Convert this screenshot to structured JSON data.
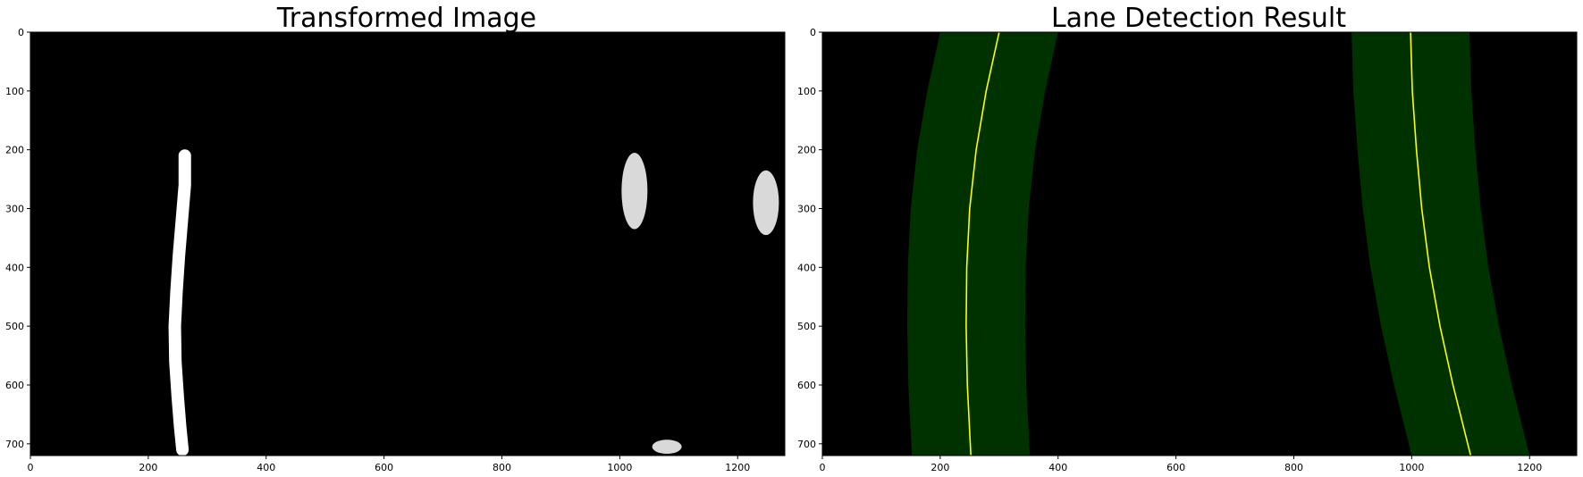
{
  "chart_data": [
    {
      "type": "image",
      "title": "Transformed Image",
      "xlim": [
        0,
        1280
      ],
      "ylim": [
        720,
        0
      ],
      "xticks": [
        0,
        200,
        400,
        600,
        800,
        1000,
        1200
      ],
      "yticks": [
        0,
        100,
        200,
        300,
        400,
        500,
        600,
        700
      ],
      "xtick_labels": [
        "0",
        "200",
        "400",
        "600",
        "800",
        "1000",
        "1200"
      ],
      "ytick_labels": [
        "0",
        "100",
        "200",
        "300",
        "400",
        "500",
        "600",
        "700"
      ],
      "background_color": "#000000",
      "pixel_color": "#ffffff",
      "content": "binary warped lane-pixel mask",
      "left_lane_points": [
        {
          "x": 262,
          "y": 210
        },
        {
          "x": 262,
          "y": 260
        },
        {
          "x": 257,
          "y": 320
        },
        {
          "x": 252,
          "y": 380
        },
        {
          "x": 248,
          "y": 440
        },
        {
          "x": 245,
          "y": 500
        },
        {
          "x": 246,
          "y": 560
        },
        {
          "x": 250,
          "y": 620
        },
        {
          "x": 254,
          "y": 670
        },
        {
          "x": 258,
          "y": 710
        }
      ],
      "right_blobs": [
        {
          "x": 1025,
          "y": 270,
          "rx": 22,
          "ry": 65
        },
        {
          "x": 1248,
          "y": 290,
          "rx": 22,
          "ry": 55
        },
        {
          "x": 1080,
          "y": 705,
          "rx": 25,
          "ry": 12
        }
      ],
      "grid": false
    },
    {
      "type": "image",
      "title": "Lane Detection Result",
      "xlim": [
        0,
        1280
      ],
      "ylim": [
        720,
        0
      ],
      "xticks": [
        0,
        200,
        400,
        600,
        800,
        1000,
        1200
      ],
      "yticks": [
        0,
        100,
        200,
        300,
        400,
        500,
        600,
        700
      ],
      "xtick_labels": [
        "0",
        "200",
        "400",
        "600",
        "800",
        "1000",
        "1200"
      ],
      "ytick_labels": [
        "0",
        "100",
        "200",
        "300",
        "400",
        "500",
        "600",
        "700"
      ],
      "background_color": "#000000",
      "band_color": "#003200",
      "fit_line_color": "#ffff00",
      "band_half_width": 100,
      "left_fit_line": [
        {
          "x": 300,
          "y": 0
        },
        {
          "x": 278,
          "y": 100
        },
        {
          "x": 261,
          "y": 200
        },
        {
          "x": 250,
          "y": 300
        },
        {
          "x": 245,
          "y": 400
        },
        {
          "x": 244,
          "y": 500
        },
        {
          "x": 246,
          "y": 600
        },
        {
          "x": 252,
          "y": 720
        }
      ],
      "right_fit_line": [
        {
          "x": 998,
          "y": 0
        },
        {
          "x": 1001,
          "y": 100
        },
        {
          "x": 1008,
          "y": 200
        },
        {
          "x": 1017,
          "y": 300
        },
        {
          "x": 1030,
          "y": 400
        },
        {
          "x": 1048,
          "y": 500
        },
        {
          "x": 1070,
          "y": 600
        },
        {
          "x": 1100,
          "y": 720
        }
      ],
      "grid": false
    }
  ]
}
